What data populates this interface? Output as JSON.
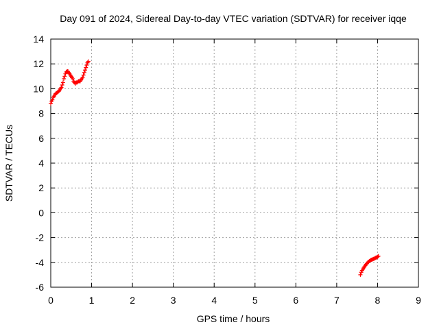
{
  "chart_data": {
    "type": "scatter",
    "title": "Day 091 of 2024, Sidereal Day-to-day VTEC variation (SDTVAR) for receiver iqqe",
    "xlabel": "GPS time / hours",
    "ylabel": "SDTVAR / TECUs",
    "xlim": [
      0,
      9
    ],
    "ylim": [
      -6,
      14
    ],
    "xticks": [
      "0",
      "1",
      "2",
      "3",
      "4",
      "5",
      "6",
      "7",
      "8",
      "9"
    ],
    "yticks": [
      "-6",
      "-4",
      "-2",
      "0",
      "2",
      "4",
      "6",
      "8",
      "10",
      "12",
      "14"
    ],
    "grid": true,
    "marker": "plus",
    "series": [
      {
        "name": "SDTVAR",
        "color": "#ff0000",
        "points": [
          [
            0.0,
            8.8
          ],
          [
            0.02,
            9.0
          ],
          [
            0.04,
            9.1
          ],
          [
            0.06,
            9.3
          ],
          [
            0.08,
            9.4
          ],
          [
            0.1,
            9.5
          ],
          [
            0.12,
            9.6
          ],
          [
            0.14,
            9.65
          ],
          [
            0.16,
            9.7
          ],
          [
            0.18,
            9.75
          ],
          [
            0.2,
            9.8
          ],
          [
            0.22,
            9.9
          ],
          [
            0.24,
            10.0
          ],
          [
            0.26,
            10.1
          ],
          [
            0.28,
            10.3
          ],
          [
            0.3,
            10.5
          ],
          [
            0.32,
            10.8
          ],
          [
            0.34,
            11.0
          ],
          [
            0.36,
            11.2
          ],
          [
            0.38,
            11.35
          ],
          [
            0.4,
            11.4
          ],
          [
            0.42,
            11.4
          ],
          [
            0.44,
            11.3
          ],
          [
            0.46,
            11.2
          ],
          [
            0.48,
            11.1
          ],
          [
            0.5,
            11.0
          ],
          [
            0.52,
            10.9
          ],
          [
            0.54,
            10.8
          ],
          [
            0.56,
            10.6
          ],
          [
            0.58,
            10.5
          ],
          [
            0.6,
            10.4
          ],
          [
            0.62,
            10.5
          ],
          [
            0.64,
            10.5
          ],
          [
            0.66,
            10.55
          ],
          [
            0.68,
            10.6
          ],
          [
            0.7,
            10.6
          ],
          [
            0.72,
            10.6
          ],
          [
            0.74,
            10.7
          ],
          [
            0.76,
            10.8
          ],
          [
            0.78,
            10.9
          ],
          [
            0.8,
            11.1
          ],
          [
            0.82,
            11.3
          ],
          [
            0.84,
            11.5
          ],
          [
            0.86,
            11.7
          ],
          [
            0.88,
            11.9
          ],
          [
            0.9,
            12.1
          ],
          [
            0.92,
            12.2
          ],
          [
            7.58,
            -5.0
          ],
          [
            7.6,
            -4.8
          ],
          [
            7.62,
            -4.65
          ],
          [
            7.64,
            -4.55
          ],
          [
            7.66,
            -4.45
          ],
          [
            7.68,
            -4.35
          ],
          [
            7.7,
            -4.25
          ],
          [
            7.72,
            -4.15
          ],
          [
            7.74,
            -4.1
          ],
          [
            7.76,
            -4.0
          ],
          [
            7.78,
            -3.95
          ],
          [
            7.8,
            -3.9
          ],
          [
            7.82,
            -3.85
          ],
          [
            7.84,
            -3.8
          ],
          [
            7.86,
            -3.78
          ],
          [
            7.88,
            -3.75
          ],
          [
            7.9,
            -3.72
          ],
          [
            7.92,
            -3.7
          ],
          [
            7.94,
            -3.65
          ],
          [
            7.96,
            -3.62
          ],
          [
            7.98,
            -3.6
          ],
          [
            8.0,
            -3.55
          ],
          [
            8.02,
            -3.5
          ]
        ]
      }
    ]
  }
}
